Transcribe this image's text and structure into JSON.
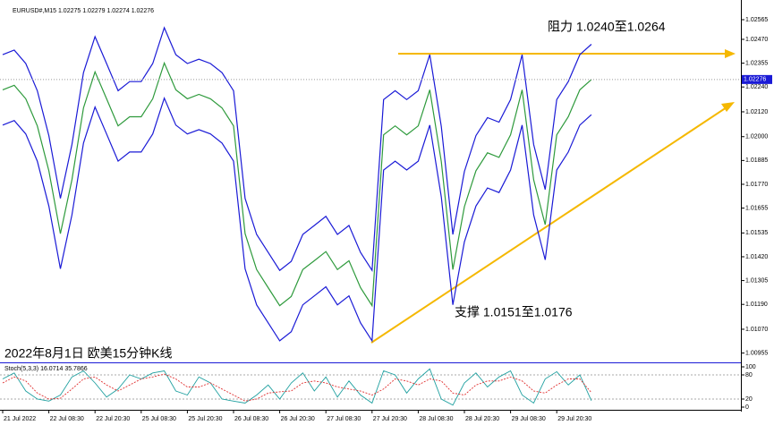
{
  "chart_data": {
    "type": "line",
    "header": "EURUSD#,M15  1.02275 1.02279 1.02274 1.02276",
    "title": "2022年8月1日 欧美15分钟K线",
    "annotations": [
      "阻力 1.0240至1.0264",
      "支撑 1.0151至1.0176"
    ],
    "categories": [
      "21 Jul 2022",
      null,
      null,
      null,
      "22 Jul 08:30",
      null,
      null,
      null,
      "22 Jul 20:30",
      null,
      null,
      null,
      "25 Jul 08:30",
      null,
      null,
      null,
      "25 Jul 20:30",
      null,
      null,
      null,
      "26 Jul 08:30",
      null,
      null,
      null,
      "26 Jul 20:30",
      null,
      null,
      null,
      "27 Jul 08:30",
      null,
      null,
      null,
      "27 Jul 20:30",
      null,
      null,
      null,
      "28 Jul 08:30",
      null,
      null,
      null,
      "28 Jul 20:30",
      null,
      null,
      null,
      "29 Jul 08:30",
      null,
      null,
      null,
      "29 Jul 20:30",
      null,
      null,
      null
    ],
    "series": [
      {
        "name": "Close",
        "color": "#2e9a3c",
        "values": [
          1.02226,
          1.02248,
          1.02183,
          1.02052,
          1.01835,
          1.01532,
          1.01792,
          1.02139,
          1.02313,
          1.02183,
          1.02052,
          1.02096,
          1.02096,
          1.02183,
          1.02356,
          1.02226,
          1.02183,
          1.02204,
          1.02183,
          1.02139,
          1.02052,
          1.01532,
          1.01358,
          1.01271,
          1.01184,
          1.01228,
          1.01358,
          1.01401,
          1.01445,
          1.01358,
          1.01401,
          1.01271,
          1.01184,
          1.02009,
          1.02052,
          1.02009,
          1.02052,
          1.02226,
          1.01879,
          1.01358,
          1.01662,
          1.01835,
          1.01922,
          1.019,
          1.02009,
          1.02226,
          1.01792,
          1.01575,
          1.02009,
          1.02096,
          1.02226,
          1.02276
        ]
      },
      {
        "name": "Upper",
        "color": "#1a1ad6",
        "values": [
          1.02396,
          1.02418,
          1.02353,
          1.02222,
          1.02005,
          1.01702,
          1.01962,
          1.02309,
          1.02483,
          1.02353,
          1.02222,
          1.02266,
          1.02266,
          1.02353,
          1.02526,
          1.02396,
          1.02353,
          1.02374,
          1.02353,
          1.02309,
          1.02222,
          1.01702,
          1.01528,
          1.01441,
          1.01354,
          1.01398,
          1.01528,
          1.01571,
          1.01615,
          1.01528,
          1.01571,
          1.01441,
          1.01354,
          1.02179,
          1.02222,
          1.02179,
          1.02222,
          1.02396,
          1.02049,
          1.01528,
          1.01832,
          1.02005,
          1.02092,
          1.0207,
          1.02179,
          1.02396,
          1.01962,
          1.01745,
          1.02179,
          1.02266,
          1.02396,
          1.02446
        ]
      },
      {
        "name": "Lower",
        "color": "#1a1ad6",
        "values": [
          1.02056,
          1.02078,
          1.02013,
          1.01882,
          1.01665,
          1.01362,
          1.01622,
          1.01969,
          1.02143,
          1.02013,
          1.01882,
          1.01926,
          1.01926,
          1.02013,
          1.02186,
          1.02056,
          1.02013,
          1.02034,
          1.02013,
          1.01969,
          1.01882,
          1.01362,
          1.01188,
          1.01101,
          1.01014,
          1.01058,
          1.01188,
          1.01231,
          1.01275,
          1.01188,
          1.01231,
          1.01101,
          1.01014,
          1.01839,
          1.01882,
          1.01839,
          1.01882,
          1.02056,
          1.01709,
          1.01188,
          1.01492,
          1.01665,
          1.01752,
          1.0173,
          1.01839,
          1.02056,
          1.01622,
          1.01405,
          1.01839,
          1.01926,
          1.02056,
          1.02106
        ]
      }
    ],
    "ylim": [
      1.0091,
      1.0266
    ],
    "yticks": [
      1.02565,
      {
        "value": 1.0247,
        "label": "1.02470"
      },
      1.02355,
      {
        "value": 1.0224,
        "label": "1.02240"
      },
      {
        "value": 1.0212,
        "label": "1.02120"
      },
      {
        "value": 1.02,
        "label": "1.02000"
      },
      1.01885,
      {
        "value": 1.0177,
        "label": "1.01770"
      },
      1.01655,
      1.01535,
      {
        "value": 1.0142,
        "label": "1.01420"
      },
      1.01305,
      {
        "value": 1.0119,
        "label": "1.01190"
      },
      {
        "value": 1.0107,
        "label": "1.01070"
      },
      1.00955
    ],
    "last_price": 1.02276,
    "grid": false,
    "stochastic": {
      "label": "Stoch(5,3,3) 16.0714 35.7866",
      "ylim": [
        0,
        100
      ],
      "yticks": [
        0,
        20,
        80,
        100
      ],
      "series": [
        {
          "name": "Main",
          "color": "#20a0a0",
          "values": [
            70,
            85,
            40,
            20,
            15,
            30,
            75,
            90,
            60,
            25,
            45,
            80,
            70,
            85,
            90,
            40,
            30,
            75,
            60,
            20,
            15,
            10,
            30,
            55,
            20,
            60,
            85,
            40,
            75,
            25,
            65,
            30,
            10,
            90,
            80,
            35,
            70,
            95,
            20,
            5,
            60,
            85,
            50,
            75,
            90,
            30,
            10,
            70,
            88,
            55,
            80,
            16
          ]
        },
        {
          "name": "Signal",
          "color": "#e03030",
          "values": [
            60,
            75,
            65,
            35,
            20,
            22,
            45,
            70,
            75,
            55,
            40,
            55,
            70,
            75,
            82,
            70,
            50,
            50,
            60,
            45,
            30,
            15,
            20,
            35,
            38,
            40,
            60,
            65,
            60,
            50,
            45,
            40,
            30,
            45,
            70,
            65,
            55,
            70,
            65,
            35,
            30,
            55,
            65,
            65,
            75,
            65,
            40,
            35,
            55,
            70,
            70,
            36
          ]
        }
      ]
    }
  }
}
